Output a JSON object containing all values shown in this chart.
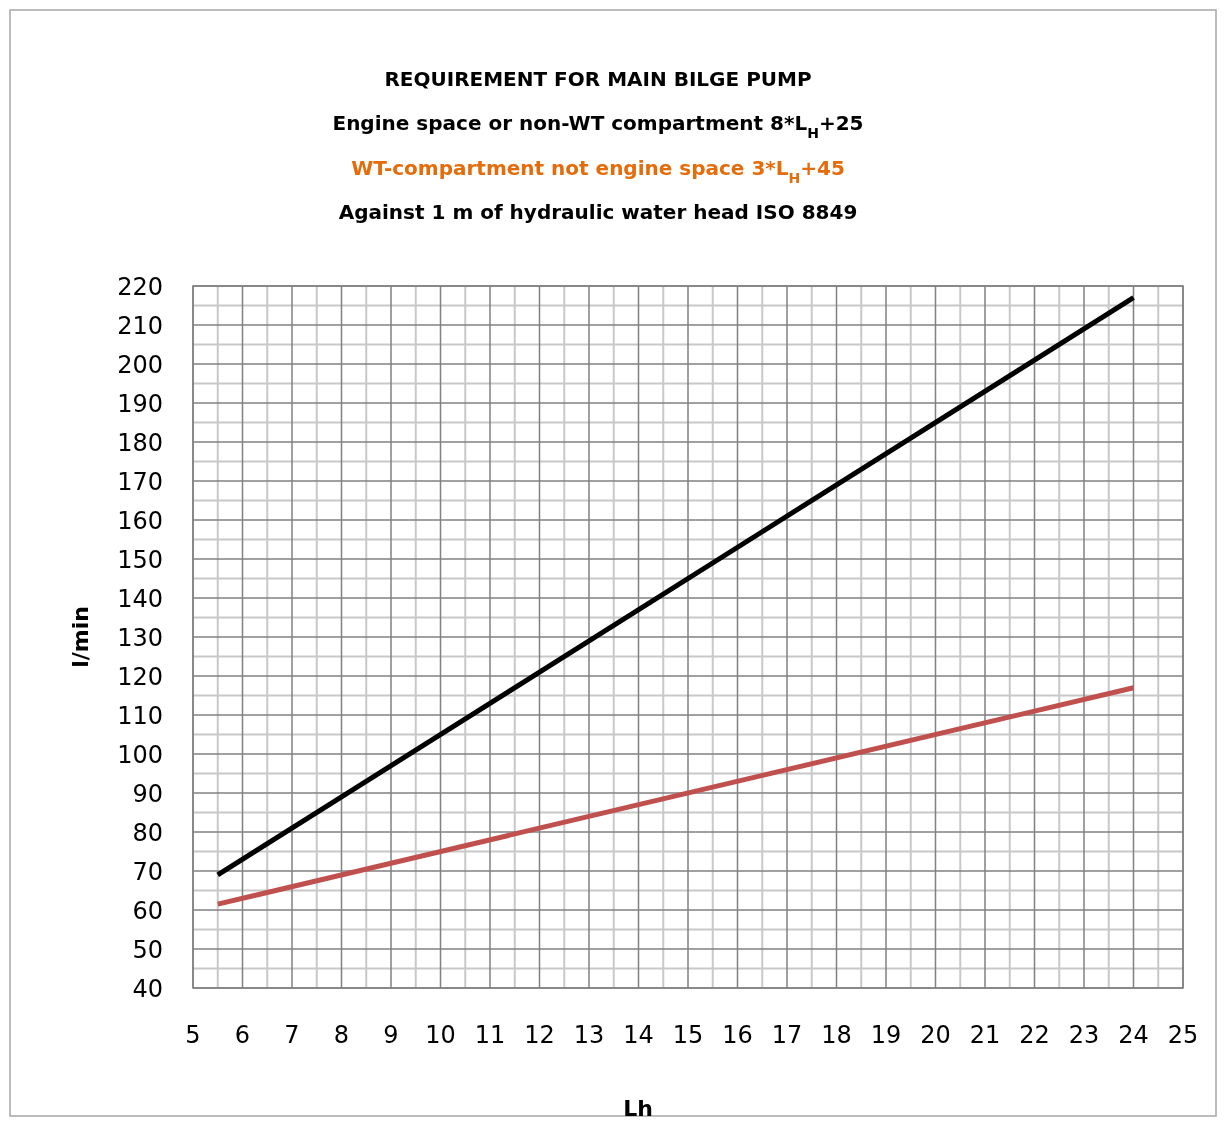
{
  "chart_data": {
    "type": "line",
    "title": "REQUIREMENT FOR MAIN BILGE PUMP",
    "subtitle": "Engine space or non-WT compartment 8*L$_{H}$+25",
    "annotations": [
      "WT-compartment not engine space 3*L$_{H}$+45",
      "Against 1 m of hydraulic water head ISO 8849"
    ],
    "xlabel": "Lh",
    "ylabel": "l/min",
    "x": [
      5.5,
      24
    ],
    "series": [
      {
        "color": "#000000",
        "values": [
          69,
          217
        ]
      },
      {
        "color": "#c0504d",
        "values": [
          61.5,
          117
        ]
      }
    ],
    "xlim": [
      5,
      25
    ],
    "xticks": [
      5,
      6,
      7,
      8,
      9,
      10,
      11,
      12,
      13,
      14,
      15,
      16,
      17,
      18,
      19,
      20,
      21,
      22,
      23,
      24,
      25
    ],
    "ylim": [
      40,
      220
    ],
    "yticks": [
      40,
      50,
      60,
      70,
      80,
      90,
      100,
      110,
      120,
      130,
      140,
      150,
      160,
      170,
      180,
      190,
      200,
      210,
      220
    ],
    "grid": true,
    "marker": "none",
    "line_style": "solid"
  }
}
